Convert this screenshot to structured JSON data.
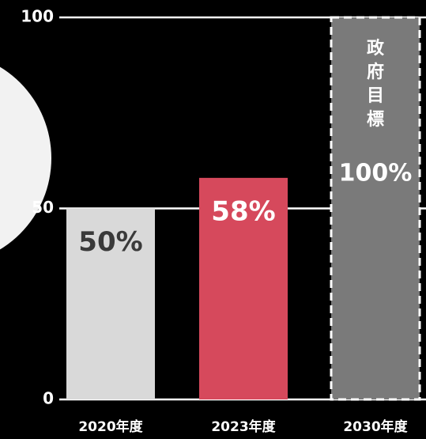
{
  "chart_data": {
    "type": "bar",
    "categories": [
      "2020年度",
      "2023年度",
      "2030年度"
    ],
    "values": [
      50,
      58,
      100
    ],
    "value_labels": [
      "50%",
      "58%",
      "100%"
    ],
    "colors": [
      "#d9d9d9",
      "#d6495c",
      "#7a7a7a"
    ],
    "label_colors": [
      "#3a3a3a",
      "#ffffff",
      "#ffffff"
    ],
    "dashed": [
      false,
      false,
      true
    ],
    "annotation": "政府目標",
    "ylim": [
      0,
      100
    ],
    "yticks": [
      0,
      50,
      100
    ],
    "grid": true
  }
}
